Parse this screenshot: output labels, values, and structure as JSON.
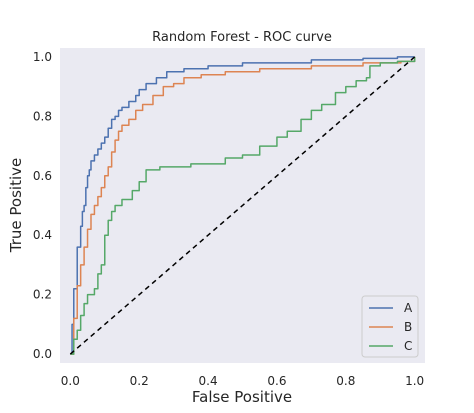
{
  "chart_data": {
    "type": "line",
    "title": "Random Forest - ROC curve",
    "xlabel": "False Positive",
    "ylabel": "True Positive",
    "xlim": [
      -0.03,
      1.03
    ],
    "ylim": [
      -0.03,
      1.03
    ],
    "xticks": [
      0.0,
      0.2,
      0.4,
      0.6,
      0.8,
      1.0
    ],
    "xtick_labels": [
      "0.0",
      "0.2",
      "0.4",
      "0.6",
      "0.8",
      "1.0"
    ],
    "yticks": [
      0.0,
      0.2,
      0.4,
      0.6,
      0.8,
      1.0
    ],
    "ytick_labels": [
      "0.0",
      "0.2",
      "0.4",
      "0.6",
      "0.8",
      "1.0"
    ],
    "grid": false,
    "legend_position": "lower-right",
    "background_color": "#eaeaf2",
    "series": [
      {
        "name": "A",
        "color": "#4c72b0",
        "points": [
          [
            0,
            0
          ],
          [
            0.005,
            0.1
          ],
          [
            0.01,
            0.22
          ],
          [
            0.02,
            0.36
          ],
          [
            0.03,
            0.43
          ],
          [
            0.035,
            0.48
          ],
          [
            0.04,
            0.5
          ],
          [
            0.045,
            0.56
          ],
          [
            0.05,
            0.6
          ],
          [
            0.055,
            0.62
          ],
          [
            0.06,
            0.65
          ],
          [
            0.07,
            0.67
          ],
          [
            0.08,
            0.69
          ],
          [
            0.09,
            0.71
          ],
          [
            0.1,
            0.73
          ],
          [
            0.11,
            0.76
          ],
          [
            0.12,
            0.79
          ],
          [
            0.13,
            0.8
          ],
          [
            0.14,
            0.82
          ],
          [
            0.15,
            0.83
          ],
          [
            0.17,
            0.85
          ],
          [
            0.19,
            0.87
          ],
          [
            0.2,
            0.89
          ],
          [
            0.22,
            0.91
          ],
          [
            0.25,
            0.93
          ],
          [
            0.28,
            0.95
          ],
          [
            0.33,
            0.96
          ],
          [
            0.4,
            0.97
          ],
          [
            0.5,
            0.98
          ],
          [
            0.7,
            0.99
          ],
          [
            0.85,
            0.995
          ],
          [
            0.95,
            1.0
          ],
          [
            1.0,
            1.0
          ]
        ]
      },
      {
        "name": "B",
        "color": "#dd8452",
        "points": [
          [
            0,
            0
          ],
          [
            0.01,
            0.12
          ],
          [
            0.02,
            0.23
          ],
          [
            0.03,
            0.3
          ],
          [
            0.04,
            0.36
          ],
          [
            0.05,
            0.42
          ],
          [
            0.06,
            0.47
          ],
          [
            0.07,
            0.5
          ],
          [
            0.08,
            0.53
          ],
          [
            0.09,
            0.56
          ],
          [
            0.1,
            0.6
          ],
          [
            0.11,
            0.63
          ],
          [
            0.12,
            0.68
          ],
          [
            0.13,
            0.72
          ],
          [
            0.14,
            0.75
          ],
          [
            0.15,
            0.77
          ],
          [
            0.17,
            0.79
          ],
          [
            0.19,
            0.82
          ],
          [
            0.21,
            0.84
          ],
          [
            0.24,
            0.87
          ],
          [
            0.27,
            0.9
          ],
          [
            0.3,
            0.91
          ],
          [
            0.33,
            0.93
          ],
          [
            0.38,
            0.94
          ],
          [
            0.45,
            0.95
          ],
          [
            0.55,
            0.96
          ],
          [
            0.7,
            0.97
          ],
          [
            0.85,
            0.98
          ],
          [
            0.96,
            0.985
          ],
          [
            1.0,
            1.0
          ]
        ]
      },
      {
        "name": "C",
        "color": "#55a868",
        "points": [
          [
            0,
            0
          ],
          [
            0.01,
            0.05
          ],
          [
            0.02,
            0.08
          ],
          [
            0.03,
            0.13
          ],
          [
            0.04,
            0.17
          ],
          [
            0.05,
            0.2
          ],
          [
            0.07,
            0.22
          ],
          [
            0.08,
            0.27
          ],
          [
            0.09,
            0.3
          ],
          [
            0.1,
            0.4
          ],
          [
            0.11,
            0.45
          ],
          [
            0.12,
            0.48
          ],
          [
            0.13,
            0.5
          ],
          [
            0.15,
            0.52
          ],
          [
            0.18,
            0.55
          ],
          [
            0.2,
            0.58
          ],
          [
            0.22,
            0.62
          ],
          [
            0.26,
            0.63
          ],
          [
            0.3,
            0.63
          ],
          [
            0.35,
            0.64
          ],
          [
            0.4,
            0.64
          ],
          [
            0.45,
            0.66
          ],
          [
            0.5,
            0.67
          ],
          [
            0.55,
            0.7
          ],
          [
            0.6,
            0.73
          ],
          [
            0.63,
            0.75
          ],
          [
            0.67,
            0.79
          ],
          [
            0.7,
            0.82
          ],
          [
            0.73,
            0.84
          ],
          [
            0.77,
            0.88
          ],
          [
            0.8,
            0.9
          ],
          [
            0.83,
            0.92
          ],
          [
            0.86,
            0.93
          ],
          [
            0.87,
            0.97
          ],
          [
            0.9,
            0.98
          ],
          [
            0.95,
            0.985
          ],
          [
            1.0,
            1.0
          ]
        ]
      }
    ],
    "reference_line": {
      "style": "dashed",
      "color": "#000000",
      "points": [
        [
          0,
          0
        ],
        [
          1,
          1
        ]
      ]
    }
  }
}
